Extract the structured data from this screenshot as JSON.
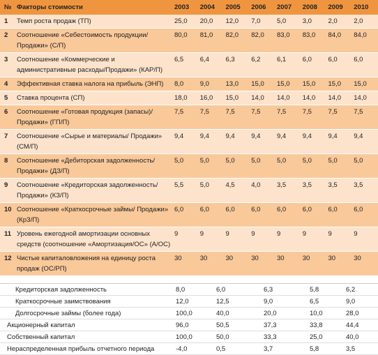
{
  "header": {
    "number": "№",
    "factor": "Факторы стоимости",
    "years": [
      "2003",
      "2004",
      "2005",
      "2006",
      "2007",
      "2008",
      "2009",
      "2010"
    ]
  },
  "rows": [
    {
      "n": "1",
      "factor": "Темп роста продаж (ТП)",
      "values": [
        "25,0",
        "20,0",
        "12,0",
        "7,0",
        "5,0",
        "3,0",
        "2,0",
        "2,0"
      ]
    },
    {
      "n": "2",
      "factor": "Соотношение «Себестоимость продукции/ Продажи» (С/П)",
      "values": [
        "80,0",
        "81,0",
        "82,0",
        "82,0",
        "83,0",
        "83,0",
        "84,0",
        "84,0"
      ]
    },
    {
      "n": "3",
      "factor": "Соотношение «Коммерческие и административные расходы/Продажи» (КАР/П)",
      "values": [
        "6,5",
        "6,4",
        "6,3",
        "6,2",
        "6,1",
        "6,0",
        "6,0",
        "6,0"
      ]
    },
    {
      "n": "4",
      "factor": "Эффективная ставка налога на прибыль (ЭНП)",
      "values": [
        "8,0",
        "9,0",
        "13,0",
        "15,0",
        "15,0",
        "15,0",
        "15,0",
        "15,0"
      ]
    },
    {
      "n": "5",
      "factor": "Ставка процента (СП)",
      "values": [
        "18,0",
        "16,0",
        "15,0",
        "14,0",
        "14,0",
        "14,0",
        "14,0",
        "14,0"
      ]
    },
    {
      "n": "6",
      "factor": "Соотношение «Готовая продукция (запасы)/ Продажи» (ГП/П)",
      "values": [
        "7,5",
        "7,5",
        "7,5",
        "7,5",
        "7,5",
        "7,5",
        "7,5",
        "7,5"
      ]
    },
    {
      "n": "7",
      "factor": "Соотношение «Сырье и материалы/ Продажи» (СМ/П)",
      "values": [
        "9,4",
        "9,4",
        "9,4",
        "9,4",
        "9,4",
        "9,4",
        "9,4",
        "9,4"
      ]
    },
    {
      "n": "8",
      "factor": "Соотношение «Дебиторская задолженность/ Продажи» (ДЗ/П)",
      "values": [
        "5,0",
        "5,0",
        "5,0",
        "5,0",
        "5,0",
        "5,0",
        "5,0",
        "5,0"
      ]
    },
    {
      "n": "9",
      "factor": "Соотношение «Кредиторская задолженность/ Продажи» (КЗ/П)",
      "values": [
        "5,5",
        "5,0",
        "4,5",
        "4,0",
        "3,5",
        "3,5",
        "3,5",
        "3,5"
      ]
    },
    {
      "n": "10",
      "factor": "Соотношение «Краткосрочные займы/ Продажи» (КрЗ/П)",
      "values": [
        "6,0",
        "6,0",
        "6,0",
        "6,0",
        "6,0",
        "6,0",
        "6,0",
        "6,0"
      ]
    },
    {
      "n": "11",
      "factor": "Уровень ежегодной амортизации основных средств (соотношение «Амортизация/ОС» (А/ОС)",
      "values": [
        "9",
        "9",
        "9",
        "9",
        "9",
        "9",
        "9",
        "9"
      ]
    },
    {
      "n": "12",
      "factor": "Чистые капиталовложения на единицу роста продаж (ОС/РП)",
      "values": [
        "30",
        "30",
        "30",
        "30",
        "30",
        "30",
        "30",
        "30"
      ]
    }
  ],
  "lower_table": [
    {
      "label": "Кредиторская задолженность",
      "values": [
        "8,0",
        "6,0",
        "6,3",
        "5,8",
        "6,2"
      ]
    },
    {
      "label": "Краткосрочные заимствования",
      "values": [
        "12,0",
        "12,5",
        "9,0",
        "6,5",
        "9,0"
      ]
    },
    {
      "label": "Долгосрочные займы (более года)",
      "values": [
        "100,0",
        "40,0",
        "20,0",
        "10,0",
        "28,0"
      ]
    },
    {
      "label": "Акционерный капитал",
      "values": [
        "96,0",
        "50,5",
        "37,3",
        "33,8",
        "44,4"
      ]
    },
    {
      "label": "Собственный капитал",
      "values": [
        "100,0",
        "50,0",
        "33,3",
        "25,0",
        "40,0"
      ]
    },
    {
      "label": "Нераспределенная прибыль отчетного периода",
      "values": [
        "-4,0",
        "0,5",
        "3,7",
        "5,8",
        "3,5"
      ]
    }
  ]
}
